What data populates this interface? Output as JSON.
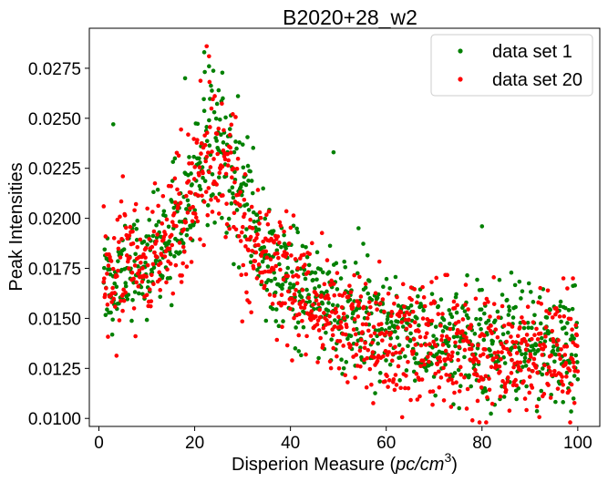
{
  "chart_data": {
    "type": "scatter",
    "title": "B2020+28_w2",
    "xlabel": "Disperion Measure (pc/cm³)",
    "xlabel_plain": "Disperion Measure (",
    "xlabel_math": "pc/cm",
    "xlabel_sup": "3",
    "xlabel_close": ")",
    "ylabel": "Peak Intensities",
    "xlim": [
      -2.0,
      104.6
    ],
    "ylim": [
      0.0096,
      0.0295
    ],
    "x_ticks": [
      0,
      20,
      40,
      60,
      80,
      100
    ],
    "x_tick_labels": [
      "0",
      "20",
      "40",
      "60",
      "80",
      "100"
    ],
    "y_ticks": [
      0.01,
      0.0125,
      0.015,
      0.0175,
      0.02,
      0.0225,
      0.025,
      0.0275
    ],
    "y_tick_labels": [
      "0.0100",
      "0.0125",
      "0.0150",
      "0.0175",
      "0.0200",
      "0.0225",
      "0.0250",
      "0.0275"
    ],
    "grid": false,
    "legend": "top-right",
    "sampling": {
      "x_min": 1.0,
      "x_max": 100.0,
      "points_per_series": 1000
    },
    "series": [
      {
        "name": "data set 1",
        "color": "#008000",
        "trend_x": [
          1,
          5,
          10,
          15,
          18,
          20,
          22,
          24,
          26,
          28,
          30,
          33,
          36,
          40,
          45,
          50,
          55,
          60,
          65,
          70,
          75,
          80,
          85,
          90,
          95,
          100
        ],
        "trend_y": [
          0.0165,
          0.0172,
          0.018,
          0.0192,
          0.0205,
          0.0218,
          0.0235,
          0.024,
          0.0232,
          0.0218,
          0.0205,
          0.019,
          0.0178,
          0.0168,
          0.0158,
          0.0152,
          0.0148,
          0.0145,
          0.0143,
          0.0142,
          0.014,
          0.0139,
          0.0138,
          0.0137,
          0.0136,
          0.0135
        ],
        "scatter": 0.0014,
        "outliers": [
          {
            "x": 3,
            "y": 0.0247
          },
          {
            "x": 49,
            "y": 0.0233
          },
          {
            "x": 80,
            "y": 0.0196
          },
          {
            "x": 22,
            "y": 0.0283
          },
          {
            "x": 23,
            "y": 0.0276
          },
          {
            "x": 18,
            "y": 0.027
          },
          {
            "x": 25,
            "y": 0.0264
          },
          {
            "x": 41,
            "y": 0.0135
          }
        ]
      },
      {
        "name": "data set 20",
        "color": "#ff0000",
        "trend_x": [
          1,
          5,
          10,
          15,
          18,
          20,
          22,
          24,
          26,
          28,
          30,
          33,
          36,
          40,
          45,
          50,
          55,
          60,
          65,
          70,
          75,
          80,
          85,
          90,
          95,
          100
        ],
        "trend_y": [
          0.0168,
          0.0175,
          0.018,
          0.019,
          0.02,
          0.0212,
          0.0228,
          0.023,
          0.0222,
          0.021,
          0.0198,
          0.0185,
          0.0175,
          0.0165,
          0.0155,
          0.0148,
          0.0143,
          0.014,
          0.0138,
          0.0136,
          0.0134,
          0.0131,
          0.013,
          0.013,
          0.0131,
          0.0132
        ],
        "scatter": 0.0014,
        "outliers": [
          {
            "x": 22.5,
            "y": 0.0286
          },
          {
            "x": 23,
            "y": 0.0281
          },
          {
            "x": 1,
            "y": 0.0206
          },
          {
            "x": 5,
            "y": 0.0221
          },
          {
            "x": 99,
            "y": 0.017
          },
          {
            "x": 97,
            "y": 0.017
          }
        ]
      }
    ]
  }
}
